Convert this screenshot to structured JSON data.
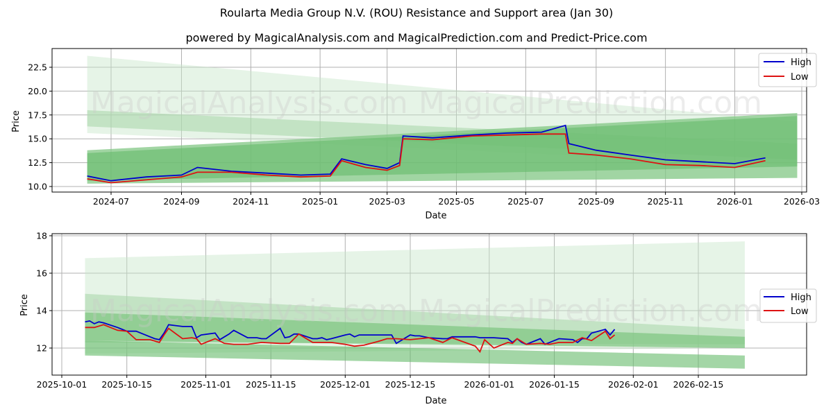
{
  "title": "Roularta Media Group N.V. (ROU) Resistance and Support area (Jan 30)",
  "subtitle": "powered by MagicalAnalysis.com and MagicalPrediction.com and Predict-Price.com",
  "watermarks": [
    "MagicalAnalysis.com",
    "MagicalPrediction.com"
  ],
  "colors": {
    "high": "#0000cc",
    "low": "#dd1111",
    "band": "#4caf50"
  },
  "chart_data": [
    {
      "type": "line",
      "title": "Roularta Media Group N.V. (ROU) Resistance and Support area (Jan 30)",
      "xlabel": "Date",
      "ylabel": "Price",
      "xticks": [
        "2024-07",
        "2024-09",
        "2024-11",
        "2025-01",
        "2025-03",
        "2025-05",
        "2025-07",
        "2025-09",
        "2025-11",
        "2026-01",
        "2026-03"
      ],
      "yticks": [
        "10.0",
        "12.5",
        "15.0",
        "17.5",
        "20.0",
        "22.5"
      ],
      "ylim": [
        9.5,
        24.5
      ],
      "grid": true,
      "legend_position": "upper right",
      "legend": [
        "High",
        "Low"
      ],
      "series": [
        {
          "name": "High",
          "x": [
            "2024-06-10",
            "2024-07-01",
            "2024-08-01",
            "2024-09-01",
            "2024-09-15",
            "2024-10-15",
            "2024-11-15",
            "2024-12-15",
            "2025-01-10",
            "2025-01-20",
            "2025-02-10",
            "2025-03-01",
            "2025-03-12",
            "2025-03-15",
            "2025-04-10",
            "2025-05-15",
            "2025-06-15",
            "2025-07-15",
            "2025-08-05",
            "2025-08-08",
            "2025-09-01",
            "2025-10-01",
            "2025-11-01",
            "2025-12-01",
            "2026-01-01",
            "2026-01-28"
          ],
          "values": [
            11.1,
            10.6,
            11.0,
            11.2,
            12.0,
            11.6,
            11.4,
            11.2,
            11.3,
            12.9,
            12.3,
            11.9,
            12.5,
            15.3,
            15.1,
            15.4,
            15.6,
            15.7,
            16.4,
            14.5,
            13.8,
            13.3,
            12.8,
            12.6,
            12.4,
            13.0
          ]
        },
        {
          "name": "Low",
          "x": [
            "2024-06-10",
            "2024-07-01",
            "2024-08-01",
            "2024-09-01",
            "2024-09-15",
            "2024-10-15",
            "2024-11-15",
            "2024-12-15",
            "2025-01-10",
            "2025-01-20",
            "2025-02-10",
            "2025-03-01",
            "2025-03-12",
            "2025-03-15",
            "2025-04-10",
            "2025-05-15",
            "2025-06-15",
            "2025-07-15",
            "2025-08-05",
            "2025-08-08",
            "2025-09-01",
            "2025-10-01",
            "2025-11-01",
            "2025-12-01",
            "2026-01-01",
            "2026-01-28"
          ],
          "values": [
            10.8,
            10.4,
            10.7,
            11.0,
            11.5,
            11.5,
            11.2,
            11.0,
            11.1,
            12.7,
            12.0,
            11.7,
            12.2,
            15.0,
            14.9,
            15.3,
            15.4,
            15.5,
            15.5,
            13.5,
            13.3,
            12.9,
            12.3,
            12.2,
            12.0,
            12.7
          ]
        }
      ],
      "bands": [
        {
          "name": "resistance-wide",
          "start": [
            "2024-06-10",
            15.6,
            23.7
          ],
          "end": [
            "2026-02-25",
            12.2,
            16.8
          ]
        },
        {
          "name": "resistance-inner",
          "start": [
            "2024-06-10",
            16.3,
            18.0
          ],
          "end": [
            "2026-02-25",
            12.8,
            14.5
          ]
        },
        {
          "name": "support-wide",
          "start": [
            "2024-06-10",
            10.3,
            13.8
          ],
          "end": [
            "2026-02-25",
            10.9,
            17.7
          ]
        },
        {
          "name": "support-core",
          "start": [
            "2024-06-10",
            10.6,
            13.5
          ],
          "end": [
            "2026-02-25",
            12.1,
            17.4
          ]
        }
      ]
    },
    {
      "type": "line",
      "xlabel": "Date",
      "ylabel": "Price",
      "xticks": [
        "2025-10-01",
        "2025-10-15",
        "2025-11-01",
        "2025-11-15",
        "2025-12-01",
        "2025-12-15",
        "2026-01-01",
        "2026-01-15",
        "2026-02-01",
        "2026-02-15"
      ],
      "yticks": [
        "12",
        "14",
        "16",
        "18"
      ],
      "ylim": [
        10.6,
        18.1
      ],
      "grid": true,
      "legend_position": "center right",
      "legend": [
        "High",
        "Low"
      ],
      "series": [
        {
          "name": "High",
          "x": [
            "2025-10-06",
            "2025-10-07",
            "2025-10-08",
            "2025-10-09",
            "2025-10-10",
            "2025-10-13",
            "2025-10-14",
            "2025-10-15",
            "2025-10-16",
            "2025-10-17",
            "2025-10-20",
            "2025-10-21",
            "2025-10-22",
            "2025-10-23",
            "2025-10-24",
            "2025-10-27",
            "2025-10-28",
            "2025-10-29",
            "2025-10-30",
            "2025-10-31",
            "2025-11-03",
            "2025-11-04",
            "2025-11-05",
            "2025-11-06",
            "2025-11-07",
            "2025-11-10",
            "2025-11-11",
            "2025-11-12",
            "2025-11-13",
            "2025-11-14",
            "2025-11-17",
            "2025-11-18",
            "2025-11-19",
            "2025-11-20",
            "2025-11-21",
            "2025-11-24",
            "2025-11-25",
            "2025-11-26",
            "2025-11-27",
            "2025-11-28",
            "2025-12-01",
            "2025-12-02",
            "2025-12-03",
            "2025-12-04",
            "2025-12-05",
            "2025-12-08",
            "2025-12-09",
            "2025-12-10",
            "2025-12-11",
            "2025-12-12",
            "2025-12-15",
            "2025-12-16",
            "2025-12-17",
            "2025-12-18",
            "2025-12-19",
            "2025-12-22",
            "2025-12-23",
            "2025-12-24",
            "2025-12-29",
            "2025-12-30",
            "2025-12-31",
            "2026-01-02",
            "2026-01-05",
            "2026-01-06",
            "2026-01-07",
            "2026-01-08",
            "2026-01-09",
            "2026-01-12",
            "2026-01-13",
            "2026-01-14",
            "2026-01-15",
            "2026-01-16",
            "2026-01-19",
            "2026-01-20",
            "2026-01-21",
            "2026-01-22",
            "2026-01-23",
            "2026-01-26",
            "2026-01-27",
            "2026-01-28"
          ],
          "values": [
            13.4,
            13.45,
            13.3,
            13.4,
            13.35,
            13.1,
            13.0,
            12.9,
            12.9,
            12.9,
            12.6,
            12.5,
            12.45,
            12.8,
            13.25,
            13.15,
            13.15,
            13.15,
            12.55,
            12.7,
            12.8,
            12.45,
            12.6,
            12.75,
            12.95,
            12.55,
            12.55,
            12.55,
            12.5,
            12.5,
            13.05,
            12.55,
            12.6,
            12.75,
            12.75,
            12.5,
            12.5,
            12.55,
            12.45,
            12.5,
            12.7,
            12.75,
            12.6,
            12.7,
            12.7,
            12.7,
            12.7,
            12.7,
            12.7,
            12.25,
            12.7,
            12.65,
            12.65,
            12.6,
            12.55,
            12.5,
            12.5,
            12.6,
            12.6,
            12.55,
            12.55,
            12.55,
            12.5,
            12.3,
            12.5,
            12.3,
            12.2,
            12.5,
            12.2,
            12.3,
            12.4,
            12.5,
            12.45,
            12.3,
            12.5,
            12.5,
            12.8,
            13.0,
            12.7,
            13.0
          ]
        },
        {
          "name": "Low",
          "x": [
            "2025-10-06",
            "2025-10-08",
            "2025-10-10",
            "2025-10-13",
            "2025-10-15",
            "2025-10-17",
            "2025-10-20",
            "2025-10-22",
            "2025-10-23",
            "2025-10-24",
            "2025-10-27",
            "2025-10-29",
            "2025-10-30",
            "2025-10-31",
            "2025-11-03",
            "2025-11-05",
            "2025-11-07",
            "2025-11-10",
            "2025-11-13",
            "2025-11-17",
            "2025-11-19",
            "2025-11-21",
            "2025-11-24",
            "2025-11-28",
            "2025-12-01",
            "2025-12-03",
            "2025-12-05",
            "2025-12-08",
            "2025-12-10",
            "2025-12-12",
            "2025-12-15",
            "2025-12-17",
            "2025-12-19",
            "2025-12-22",
            "2025-12-24",
            "2025-12-29",
            "2025-12-30",
            "2025-12-31",
            "2026-01-02",
            "2026-01-05",
            "2026-01-06",
            "2026-01-07",
            "2026-01-09",
            "2026-01-12",
            "2026-01-14",
            "2026-01-16",
            "2026-01-19",
            "2026-01-21",
            "2026-01-23",
            "2026-01-26",
            "2026-01-27",
            "2026-01-28"
          ],
          "values": [
            13.1,
            13.1,
            13.25,
            12.95,
            12.9,
            12.45,
            12.45,
            12.3,
            12.7,
            13.05,
            12.5,
            12.55,
            12.5,
            12.2,
            12.5,
            12.25,
            12.2,
            12.2,
            12.3,
            12.25,
            12.25,
            12.75,
            12.3,
            12.3,
            12.2,
            12.1,
            12.15,
            12.35,
            12.5,
            12.5,
            12.45,
            12.5,
            12.55,
            12.3,
            12.55,
            12.1,
            11.8,
            12.45,
            12.0,
            12.3,
            12.25,
            12.5,
            12.2,
            12.25,
            12.2,
            12.3,
            12.3,
            12.55,
            12.4,
            12.9,
            12.5,
            12.7
          ]
        }
      ],
      "bands": [
        {
          "name": "resistance-wide",
          "start": [
            "2025-10-06",
            11.7,
            16.8
          ],
          "end": [
            "2026-02-25",
            12.0,
            17.7
          ]
        },
        {
          "name": "resistance-inner",
          "start": [
            "2025-10-06",
            12.3,
            14.9
          ],
          "end": [
            "2026-02-25",
            12.2,
            13.0
          ]
        },
        {
          "name": "support-core",
          "start": [
            "2025-10-06",
            12.4,
            13.9
          ],
          "end": [
            "2026-02-25",
            12.0,
            12.6
          ]
        },
        {
          "name": "support-lower",
          "start": [
            "2025-10-06",
            11.6,
            12.4
          ],
          "end": [
            "2026-02-25",
            10.9,
            11.6
          ]
        }
      ]
    }
  ]
}
